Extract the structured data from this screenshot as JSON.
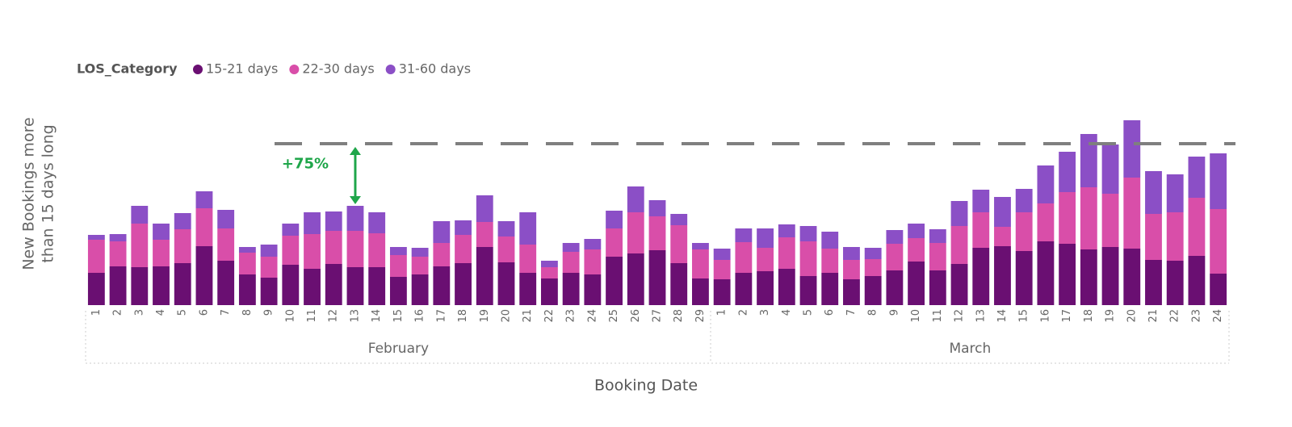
{
  "chart_data": {
    "type": "stacked_bar",
    "legend_title": "LOS_Category",
    "y_label": [
      "New Bookings more",
      "than 15 days long"
    ],
    "x_label": "Booking Date",
    "category_groups": [
      {
        "label": "February",
        "categories": [
          "1",
          "2",
          "3",
          "4",
          "5",
          "6",
          "7",
          "8",
          "9",
          "10",
          "11",
          "12",
          "13",
          "14",
          "15",
          "16",
          "17",
          "18",
          "19",
          "20",
          "21",
          "22",
          "23",
          "24",
          "25",
          "26",
          "27",
          "28",
          "29"
        ]
      },
      {
        "label": "March",
        "categories": [
          "1",
          "2",
          "3",
          "4",
          "5",
          "6",
          "7",
          "8",
          "9",
          "10",
          "11",
          "12",
          "13",
          "14",
          "15",
          "16",
          "17",
          "18",
          "19",
          "20",
          "21",
          "22",
          "23",
          "24"
        ]
      }
    ],
    "series": [
      {
        "name": "15-21 days",
        "color": "#6a0f72",
        "values": [
          40,
          48,
          47,
          48,
          52,
          73,
          55,
          38,
          34,
          50,
          45,
          51,
          47,
          47,
          35,
          38,
          48,
          52,
          72,
          53,
          40,
          33,
          40,
          38,
          60,
          64,
          68,
          52,
          33,
          32,
          40,
          42,
          45,
          36,
          40,
          32,
          36,
          43,
          54,
          43,
          51,
          71,
          73,
          67,
          79,
          76,
          69,
          72,
          70,
          56,
          55,
          61,
          39
        ]
      },
      {
        "name": "22-30 days",
        "color": "#d94ea9",
        "values": [
          41,
          31,
          54,
          33,
          42,
          47,
          40,
          27,
          26,
          36,
          43,
          41,
          45,
          42,
          27,
          22,
          29,
          35,
          31,
          32,
          35,
          14,
          26,
          31,
          35,
          51,
          42,
          47,
          36,
          24,
          38,
          29,
          39,
          43,
          30,
          24,
          21,
          33,
          29,
          34,
          47,
          44,
          24,
          48,
          47,
          64,
          77,
          66,
          88,
          57,
          60,
          72,
          80
        ]
      },
      {
        "name": "31-60 days",
        "color": "#8b4fc6",
        "values": [
          6,
          9,
          22,
          20,
          20,
          21,
          23,
          7,
          15,
          15,
          27,
          24,
          31,
          26,
          10,
          11,
          27,
          18,
          33,
          19,
          40,
          8,
          11,
          13,
          22,
          32,
          20,
          14,
          8,
          14,
          17,
          24,
          16,
          19,
          21,
          16,
          14,
          17,
          18,
          17,
          31,
          28,
          37,
          29,
          47,
          50,
          66,
          61,
          71,
          53,
          47,
          51,
          69
        ]
      }
    ],
    "ylim": [
      0,
      240
    ],
    "reference_line": 200,
    "reference_color": "#7f7f7f",
    "annotation": {
      "text": "+75%",
      "group": "February",
      "category": "13",
      "color": "#1fa64a"
    }
  }
}
